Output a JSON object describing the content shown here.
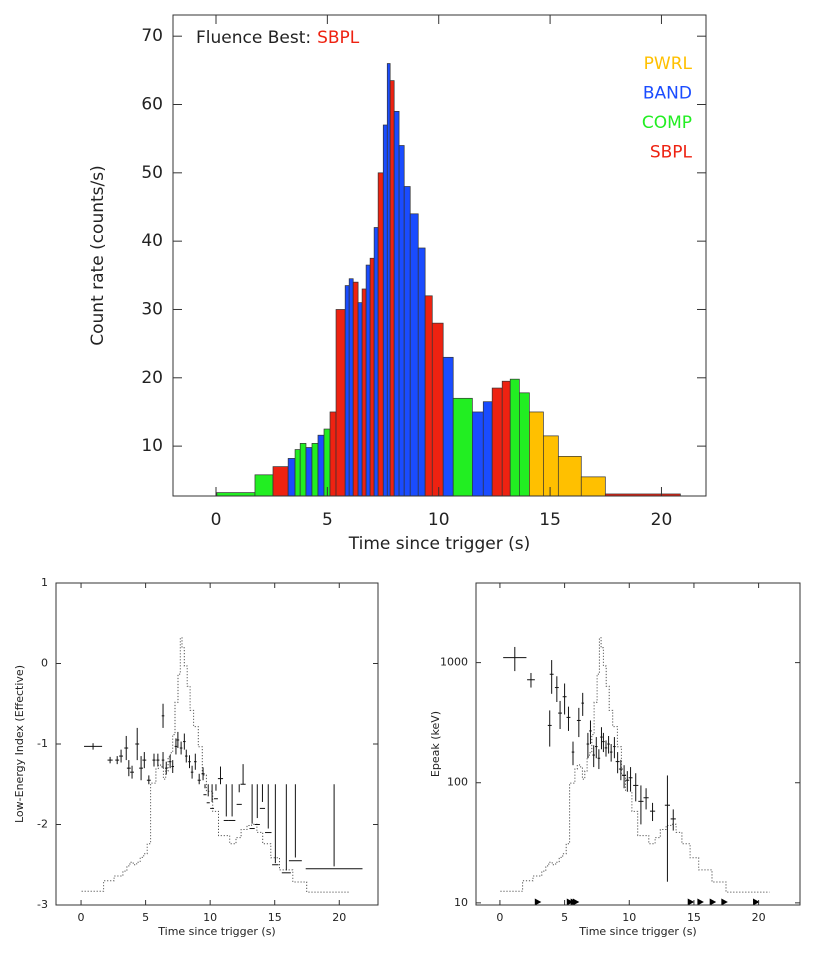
{
  "chart_data": [
    {
      "type": "histogram",
      "annotation": {
        "text": "Fluence Best:",
        "model": "SBPL"
      },
      "legend": [
        {
          "name": "PWRL",
          "color": "#ffc000"
        },
        {
          "name": "BAND",
          "color": "#1a4cff"
        },
        {
          "name": "COMP",
          "color": "#22ee22"
        },
        {
          "name": "SBPL",
          "color": "#ee2211"
        }
      ],
      "bins": [
        0.04,
        1.75,
        2.56,
        3.24,
        3.55,
        3.78,
        4.04,
        4.31,
        4.58,
        4.85,
        5.12,
        5.39,
        5.8,
        5.98,
        6.16,
        6.38,
        6.56,
        6.74,
        6.92,
        7.1,
        7.28,
        7.51,
        7.69,
        7.82,
        8.0,
        8.22,
        8.45,
        8.72,
        9.08,
        9.39,
        9.71,
        10.2,
        10.65,
        11.51,
        12.0,
        12.4,
        12.85,
        13.21,
        13.62,
        14.07,
        14.7,
        15.37,
        16.4,
        17.48,
        20.85
      ],
      "values": [
        3.2,
        5.8,
        7.0,
        8.2,
        9.5,
        10.4,
        9.8,
        10.4,
        11.6,
        12.5,
        15.0,
        30.0,
        33.5,
        34.5,
        34.0,
        31.0,
        33.0,
        36.5,
        37.5,
        42.0,
        50.0,
        57.0,
        66.0,
        63.5,
        59.0,
        54.0,
        48.0,
        44.0,
        39.0,
        32.0,
        28.0,
        23.0,
        17.0,
        15.0,
        16.5,
        18.5,
        19.5,
        19.8,
        17.8,
        15.0,
        11.5,
        8.5,
        5.5,
        3.0
      ],
      "models": [
        "COMP",
        "COMP",
        "SBPL",
        "BAND",
        "COMP",
        "COMP",
        "BAND",
        "COMP",
        "BAND",
        "COMP",
        "SBPL",
        "SBPL",
        "BAND",
        "BAND",
        "SBPL",
        "BAND",
        "SBPL",
        "BAND",
        "SBPL",
        "BAND",
        "SBPL",
        "BAND",
        "BAND",
        "SBPL",
        "BAND",
        "BAND",
        "BAND",
        "BAND",
        "BAND",
        "SBPL",
        "SBPL",
        "BAND",
        "COMP",
        "BAND",
        "BAND",
        "SBPL",
        "SBPL",
        "COMP",
        "COMP",
        "PWRL",
        "PWRL",
        "PWRL",
        "PWRL",
        "SBPL"
      ],
      "xlabel": "Time since trigger (s)",
      "ylabel": "Count rate (counts/s)",
      "xlim": [
        -1.93,
        22.0
      ],
      "ylim": [
        2.7,
        73.1
      ],
      "xticks": [
        0,
        5,
        10,
        15,
        20
      ],
      "yticks": [
        10,
        20,
        30,
        40,
        50,
        60,
        70
      ]
    },
    {
      "type": "errorbar",
      "xlabel": "Time since trigger (s)",
      "ylabel": "Low-Energy Index (Effective)",
      "xlim": [
        -1.94,
        23.0
      ],
      "ylim": [
        -3,
        1
      ],
      "xticks": [
        0,
        5,
        10,
        15,
        20
      ],
      "yticks": [
        1,
        0,
        -1,
        -2,
        -3
      ],
      "x": [
        0.93,
        2.25,
        2.8,
        3.1,
        3.5,
        3.7,
        3.95,
        4.35,
        4.65,
        4.9,
        5.25,
        5.65,
        5.95,
        6.35,
        6.35,
        6.6,
        6.9,
        7.1,
        7.35,
        7.5,
        7.75,
        8.0,
        8.15,
        8.4,
        8.6,
        8.85,
        9.15,
        9.45,
        9.6,
        9.85,
        10.15,
        10.45,
        10.8,
        11.25,
        11.7,
        12.25,
        12.55,
        13.25,
        13.65,
        14.05,
        14.5,
        15.05,
        15.9,
        16.6,
        19.6
      ],
      "x_err": [
        0.7,
        0.2,
        0.15,
        0.15,
        0.15,
        0.15,
        0.15,
        0.15,
        0.15,
        0.15,
        0.15,
        0.12,
        0.12,
        0.1,
        0.1,
        0.1,
        0.1,
        0.1,
        0.1,
        0.1,
        0.1,
        0.1,
        0.1,
        0.1,
        0.1,
        0.1,
        0.12,
        0.12,
        0.12,
        0.12,
        0.15,
        0.15,
        0.2,
        0.2,
        0.25,
        0.2,
        0.2,
        0.2,
        0.2,
        0.2,
        0.25,
        0.25,
        0.35,
        0.5,
        2.2
      ],
      "values": [
        -1.03,
        -1.2,
        -1.2,
        -1.15,
        -1.05,
        -1.3,
        -1.35,
        -1.0,
        -1.3,
        -1.2,
        -1.45,
        -1.2,
        -1.2,
        -0.65,
        -1.2,
        -1.3,
        -1.22,
        -1.28,
        -1.03,
        -0.95,
        -1.05,
        -0.97,
        -1.15,
        -1.22,
        -1.35,
        -1.22,
        -1.45,
        -1.37,
        -1.63,
        -1.73,
        -1.8,
        -1.68,
        -1.43,
        -1.95,
        -1.95,
        -1.75,
        -1.5,
        -2.05,
        -2.0,
        -1.8,
        -2.1,
        -2.5,
        -2.6,
        -2.45,
        -2.55
      ],
      "y_err": [
        0.04,
        0.04,
        0.05,
        0.08,
        0.15,
        0.1,
        0.08,
        0.2,
        0.15,
        0.1,
        0.06,
        0.08,
        0.08,
        0.15,
        0.1,
        0.08,
        0.08,
        0.08,
        0.1,
        0.1,
        0.08,
        0.1,
        0.08,
        0.08,
        0.08,
        0.1,
        0.08,
        0.08,
        0.08,
        0.08,
        0.08,
        0.1,
        0.15,
        0.05,
        0.05,
        0.15,
        0.25,
        0.06,
        0.08,
        0.08,
        0.05,
        0.02,
        0.03,
        0.04,
        0.03
      ]
    },
    {
      "type": "errorbar",
      "log_y": true,
      "xlabel": "Time since trigger (s)",
      "ylabel": "Epeak (keV)",
      "xlim": [
        -1.85,
        23.2
      ],
      "ylim": [
        9.6,
        4600
      ],
      "xticks": [
        0,
        5,
        10,
        15,
        20
      ],
      "yticks": [
        10,
        100,
        1000
      ],
      "x": [
        1.15,
        2.4,
        3.85,
        4.0,
        4.4,
        4.65,
        5.0,
        5.3,
        5.65,
        6.1,
        6.4,
        6.8,
        7.0,
        7.25,
        7.45,
        7.65,
        7.85,
        8.0,
        8.2,
        8.4,
        8.6,
        8.85,
        9.1,
        9.35,
        9.6,
        9.85,
        10.1,
        10.5,
        10.9,
        11.3,
        11.8,
        12.95,
        13.4
      ],
      "x_err": [
        0.9,
        0.3,
        0.15,
        0.15,
        0.15,
        0.15,
        0.15,
        0.15,
        0.1,
        0.15,
        0.1,
        0.1,
        0.1,
        0.1,
        0.1,
        0.1,
        0.1,
        0.1,
        0.1,
        0.1,
        0.1,
        0.1,
        0.15,
        0.15,
        0.15,
        0.15,
        0.15,
        0.2,
        0.2,
        0.2,
        0.2,
        0.2,
        0.2
      ],
      "values": [
        1100,
        720,
        300,
        800,
        620,
        380,
        520,
        350,
        180,
        330,
        460,
        210,
        270,
        170,
        200,
        160,
        240,
        220,
        195,
        210,
        180,
        200,
        150,
        130,
        115,
        105,
        110,
        95,
        70,
        75,
        58,
        65,
        50
      ],
      "y_err": [
        250,
        100,
        100,
        250,
        150,
        100,
        150,
        80,
        40,
        90,
        100,
        50,
        60,
        35,
        40,
        30,
        50,
        40,
        30,
        35,
        30,
        40,
        30,
        25,
        25,
        20,
        25,
        25,
        25,
        15,
        10,
        50,
        10
      ],
      "markers": [
        2.93,
        5.4,
        5.7,
        5.87,
        14.75,
        15.5,
        16.45,
        17.35,
        19.8
      ]
    }
  ]
}
